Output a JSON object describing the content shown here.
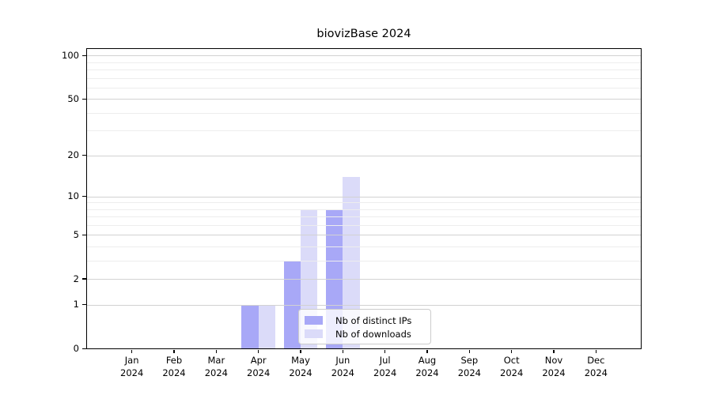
{
  "title": "biovizBase 2024",
  "chart_data": {
    "type": "bar",
    "title": "biovizBase 2024",
    "months": [
      "Jan",
      "Feb",
      "Mar",
      "Apr",
      "May",
      "Jun",
      "Jul",
      "Aug",
      "Sep",
      "Oct",
      "Nov",
      "Dec"
    ],
    "year_label": "2024",
    "series": [
      {
        "name": "Nb of distinct IPs",
        "color": "#a8a8f7",
        "values": [
          0,
          0,
          0,
          1,
          3,
          8,
          0,
          0,
          0,
          0,
          0,
          0
        ]
      },
      {
        "name": "Nb of downloads",
        "color": "#dbdbf9",
        "values": [
          0,
          0,
          0,
          1,
          8,
          14,
          0,
          0,
          0,
          0,
          0,
          0
        ]
      }
    ],
    "y_axis": {
      "scale": "log1p",
      "major_ticks": [
        0,
        1,
        2,
        5,
        10,
        20,
        50,
        100
      ],
      "minor_gridlines": [
        3,
        4,
        6,
        7,
        8,
        9,
        30,
        40,
        60,
        70,
        80,
        90
      ],
      "top_value": 111
    },
    "x_axis": {
      "tick_style": "month-over-year"
    },
    "grid": "on",
    "legend": {
      "position": "lower-center-inside"
    },
    "colors": {
      "major_grid": "#d2d2d2",
      "minor_grid": "#ededed",
      "axis": "#000000",
      "background": "#ffffff"
    }
  }
}
